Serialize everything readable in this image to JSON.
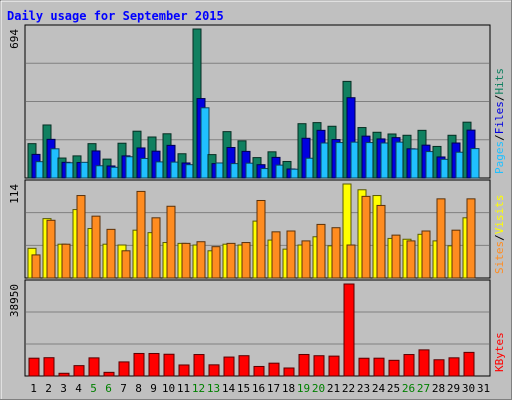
{
  "chart_data": {
    "type": "bar",
    "title": "Daily usage for September 2015",
    "categories": [
      "1",
      "2",
      "3",
      "4",
      "5",
      "6",
      "7",
      "8",
      "9",
      "10",
      "11",
      "12",
      "13",
      "14",
      "15",
      "16",
      "17",
      "18",
      "19",
      "20",
      "21",
      "22",
      "23",
      "24",
      "25",
      "26",
      "27",
      "28",
      "29",
      "30",
      "31"
    ],
    "weekend_days": [
      "5",
      "6",
      "12",
      "13",
      "19",
      "20",
      "26",
      "27"
    ],
    "panels": [
      {
        "name": "pages-files-hits",
        "ymax_label": "694",
        "ylim": [
          0,
          694
        ],
        "series": [
          {
            "name": "Hits",
            "color": "#108060",
            "values": [
              160,
              247,
              93,
              103,
              160,
              88,
              162,
              218,
              191,
              206,
              113,
              694,
              109,
              216,
              173,
              95,
              122,
              77,
              253,
              258,
              241,
              450,
              235,
              213,
              205,
              199,
              222,
              147,
              199,
              260,
              0
            ]
          },
          {
            "name": "Files",
            "color": "#0000e0",
            "values": [
              110,
              180,
              73,
              72,
              126,
              56,
              103,
              140,
              125,
              152,
              70,
              370,
              67,
              142,
              124,
              62,
              96,
              42,
              185,
              222,
              179,
              374,
              195,
              182,
              188,
              136,
              153,
              98,
              163,
              223,
              0
            ]
          },
          {
            "name": "Pages",
            "color": "#20c0ff",
            "values": [
              76,
              136,
              71,
              73,
              57,
              50,
              99,
              91,
              75,
              74,
              62,
              327,
              70,
              67,
              69,
              44,
              60,
              41,
              92,
              163,
              165,
              167,
              165,
              163,
              167,
              135,
              123,
              87,
              120,
              137,
              0
            ]
          }
        ],
        "legend_labels": [
          "Pages",
          "Files",
          "Hits"
        ],
        "legend_separator": " / "
      },
      {
        "name": "visits-sites",
        "ymax_label": "114",
        "ylim": [
          0,
          114
        ],
        "series": [
          {
            "name": "Visits",
            "color": "#ffff00",
            "values": [
              36,
              72,
              41,
              83,
              60,
              41,
              40,
              58,
              55,
              43,
              42,
              40,
              33,
              41,
              40,
              69,
              46,
              35,
              40,
              50,
              39,
              114,
              107,
              100,
              48,
              47,
              53,
              45,
              39,
              73,
              0
            ]
          },
          {
            "name": "Sites",
            "color": "#ff8c20",
            "values": [
              28,
              70,
              41,
              100,
              75,
              59,
              33,
              105,
              73,
              87,
              42,
              44,
              38,
              42,
              43,
              94,
              56,
              57,
              45,
              65,
              61,
              40,
              99,
              88,
              52,
              45,
              57,
              96,
              58,
              96,
              0
            ]
          }
        ],
        "legend_labels": [
          "Sites",
          "Visits"
        ],
        "legend_separator": " / "
      },
      {
        "name": "kbytes",
        "ymax_label": "38950",
        "ylim": [
          0,
          38950
        ],
        "series": [
          {
            "name": "KBytes",
            "color": "#ff0000",
            "values": [
              7540,
              7750,
              1150,
              4390,
              7680,
              1550,
              5970,
              9540,
              9530,
              9210,
              4670,
              9090,
              4730,
              8020,
              8600,
              4040,
              5430,
              3390,
              9110,
              8590,
              8420,
              38950,
              7520,
              7540,
              6640,
              9090,
              11070,
              6880,
              7700,
              10000,
              0
            ]
          }
        ],
        "legend_labels": [
          "KBytes"
        ],
        "legend_separator": ""
      }
    ],
    "colors": {
      "background": "#c0c0c0",
      "title": "#0000ff",
      "axis_text": "#000000",
      "weekend_text": "#008000",
      "grid": "#808080"
    }
  }
}
